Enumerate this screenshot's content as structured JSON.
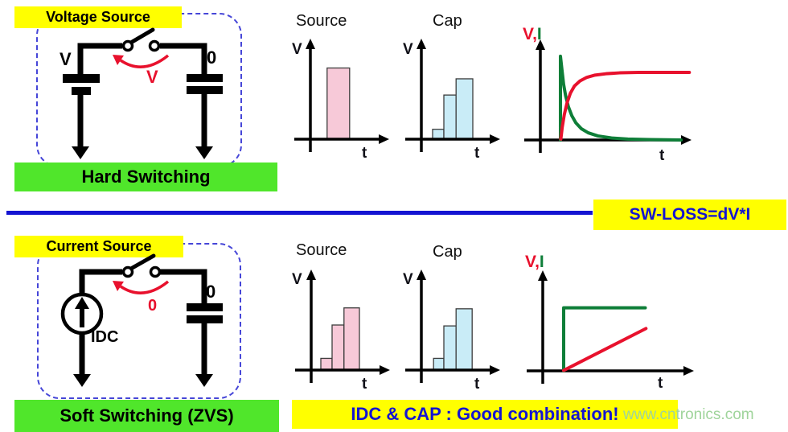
{
  "colors": {
    "highlight_yellow": "#ffff00",
    "caption_green": "#50e62b",
    "accent_blue": "#1414d2",
    "trace_red": "#e8112d",
    "trace_green": "#0e7e38",
    "bar_pink": "#f7c9d8",
    "bar_cyan": "#c9ecf7",
    "dashed_border_blue": "#4646d8",
    "watermark_green": "#9fd49b",
    "wire_black": "#000000"
  },
  "hard_section": {
    "source_tag": "Voltage Source",
    "left_node_label": "V",
    "right_node_label": "0",
    "switch_transition_label": "V",
    "caption": "Hard Switching"
  },
  "divider": {
    "loss_banner": "SW-LOSS=dV*I"
  },
  "soft_section": {
    "source_tag": "Current Source",
    "source_name": "IDC",
    "right_node_label": "0",
    "switch_transition_label": "0",
    "caption": "Soft Switching (ZVS)",
    "combo_banner": "IDC & CAP : Good combination!"
  },
  "watermark": "www.cntronics.com",
  "chart_data": [
    {
      "id": "hard-source-voltage",
      "type": "bar",
      "title": "Source",
      "ylabel": "V",
      "xlabel": "t",
      "color": "#f7c9d8",
      "bars": [
        {
          "x0": 0.26,
          "x1": 0.61,
          "h": 0.79
        }
      ]
    },
    {
      "id": "hard-cap-voltage",
      "type": "bar",
      "title": "Cap",
      "ylabel": "V",
      "xlabel": "t",
      "color": "#c9ecf7",
      "bars": [
        {
          "x0": 0.175,
          "x1": 0.35,
          "h": 0.11
        },
        {
          "x0": 0.35,
          "x1": 0.54,
          "h": 0.49
        },
        {
          "x0": 0.54,
          "x1": 0.8,
          "h": 0.67
        }
      ]
    },
    {
      "id": "hard-vi-transient",
      "type": "line",
      "label_v": "V,",
      "label_i": "I",
      "xlabel": "t",
      "series": [
        {
          "name": "I",
          "color": "#0e7e38",
          "points": [
            [
              0.147,
              0.0
            ],
            [
              0.147,
              0.93
            ],
            [
              0.158,
              0.78
            ],
            [
              0.17,
              0.62
            ],
            [
              0.185,
              0.49
            ],
            [
              0.205,
              0.37
            ],
            [
              0.23,
              0.27
            ],
            [
              0.26,
              0.19
            ],
            [
              0.3,
              0.125
            ],
            [
              0.35,
              0.08
            ],
            [
              0.42,
              0.045
            ],
            [
              0.52,
              0.022
            ],
            [
              0.64,
              0.01
            ],
            [
              0.8,
              0.004
            ],
            [
              1.03,
              0.0
            ]
          ]
        },
        {
          "name": "V",
          "color": "#e8112d",
          "points": [
            [
              0.15,
              0.01
            ],
            [
              0.16,
              0.14
            ],
            [
              0.175,
              0.28
            ],
            [
              0.195,
              0.41
            ],
            [
              0.22,
              0.52
            ],
            [
              0.25,
              0.6
            ],
            [
              0.29,
              0.655
            ],
            [
              0.34,
              0.695
            ],
            [
              0.4,
              0.72
            ],
            [
              0.48,
              0.735
            ],
            [
              0.58,
              0.745
            ],
            [
              0.72,
              0.75
            ],
            [
              0.9,
              0.75
            ],
            [
              1.09,
              0.75
            ]
          ]
        }
      ]
    },
    {
      "id": "soft-source-voltage",
      "type": "bar",
      "title": "Source",
      "ylabel": "V",
      "xlabel": "t",
      "color": "#f7c9d8",
      "bars": [
        {
          "x0": 0.15,
          "x1": 0.325,
          "h": 0.13
        },
        {
          "x0": 0.325,
          "x1": 0.51,
          "h": 0.5
        },
        {
          "x0": 0.51,
          "x1": 0.75,
          "h": 0.69
        }
      ]
    },
    {
      "id": "soft-cap-voltage",
      "type": "bar",
      "title": "Cap",
      "ylabel": "V",
      "xlabel": "t",
      "color": "#c9ecf7",
      "bars": [
        {
          "x0": 0.19,
          "x1": 0.35,
          "h": 0.13
        },
        {
          "x0": 0.35,
          "x1": 0.54,
          "h": 0.49
        },
        {
          "x0": 0.54,
          "x1": 0.79,
          "h": 0.68
        }
      ]
    },
    {
      "id": "soft-vi-transient",
      "type": "line",
      "label_v": "V,",
      "label_i": "I",
      "xlabel": "t",
      "series": [
        {
          "name": "I",
          "color": "#0e7e38",
          "points": [
            [
              0.153,
              0.0
            ],
            [
              0.153,
              0.7
            ],
            [
              0.75,
              0.7
            ]
          ]
        },
        {
          "name": "V",
          "color": "#e8112d",
          "points": [
            [
              0.153,
              0.005
            ],
            [
              0.755,
              0.47
            ]
          ]
        }
      ]
    }
  ]
}
